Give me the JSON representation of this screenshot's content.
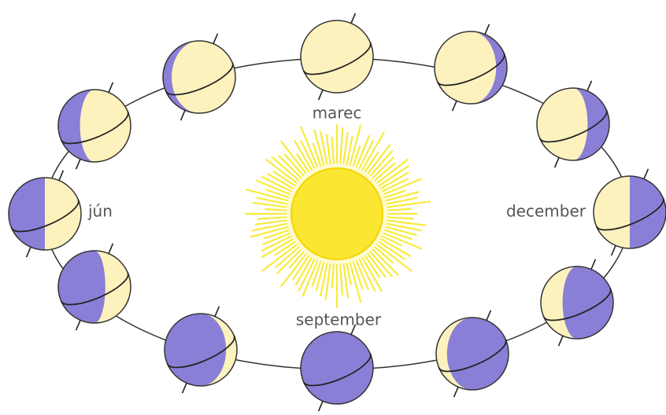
{
  "labels": [
    "marec",
    "jún",
    "september",
    "december"
  ]
}
